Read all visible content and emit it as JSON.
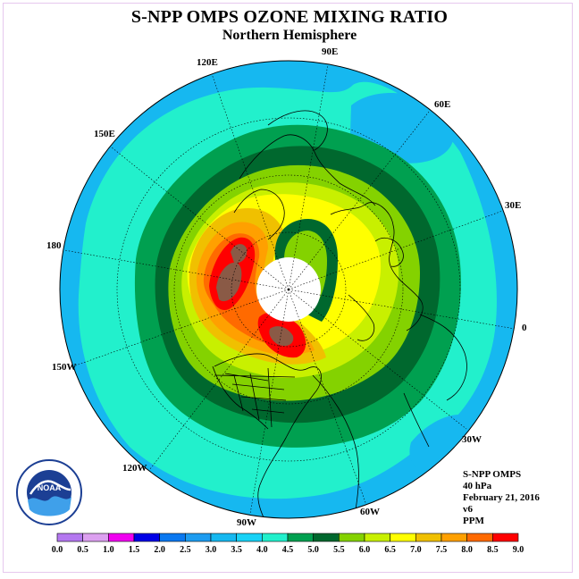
{
  "title": "S-NPP OMPS OZONE MIXING RATIO",
  "subtitle": "Northern Hemisphere",
  "longitude_labels": [
    "90E",
    "60E",
    "30E",
    "0",
    "30W",
    "60W",
    "90W",
    "120W",
    "150W",
    "180",
    "150E",
    "120E"
  ],
  "info": {
    "instrument": "S-NPP OMPS",
    "level": "40 hPa",
    "date": "February 21, 2016",
    "version": "v6",
    "units": "PPM"
  },
  "logo": {
    "text": "NOAA",
    "ring_text": "NATIONAL OCEANIC AND ATMOSPHERIC ADMINISTRATION · U.S. DEPARTMENT OF COMMERCE"
  },
  "colorbar": {
    "labels": [
      "0.0",
      "0.5",
      "1.0",
      "1.5",
      "2.0",
      "2.5",
      "3.0",
      "3.5",
      "4.0",
      "4.5",
      "5.0",
      "5.5",
      "6.0",
      "6.5",
      "7.0",
      "7.5",
      "8.0",
      "8.5",
      "9.0"
    ],
    "colors": [
      "#b478f0",
      "#dca0f0",
      "#f000f0",
      "#0000e6",
      "#0a78f0",
      "#1e9cf0",
      "#16b8f0",
      "#18d2f6",
      "#22f0cc",
      "#00a050",
      "#00682e",
      "#84d200",
      "#c8f000",
      "#ffff00",
      "#f0c000",
      "#ffa000",
      "#ff6a00",
      "#ff0000",
      "#8a5a46"
    ]
  },
  "map": {
    "background": "#ffffff",
    "polar_night_color": "#ffffff"
  }
}
